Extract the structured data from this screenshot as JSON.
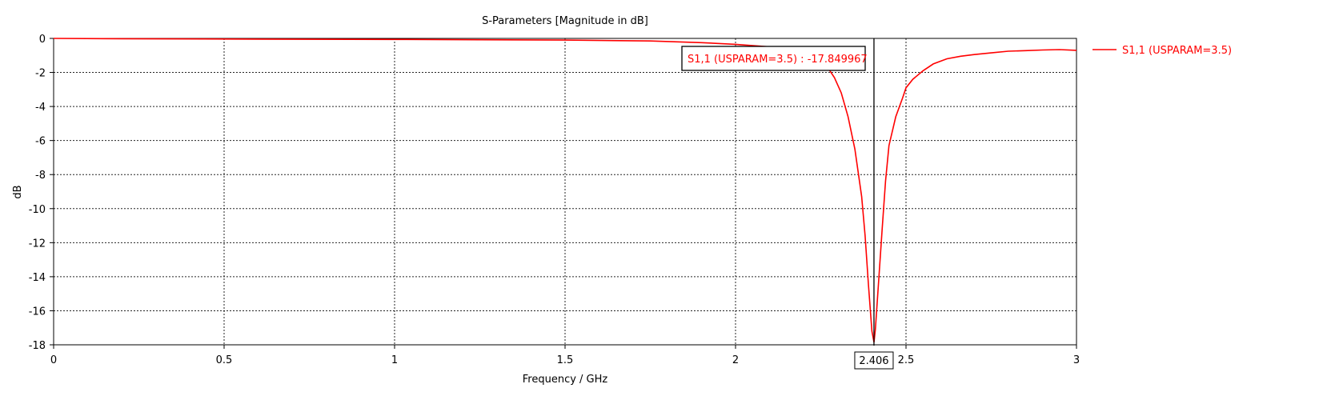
{
  "chart_data": {
    "type": "line",
    "title": "S-Parameters [Magnitude in dB]",
    "xlabel": "Frequency / GHz",
    "ylabel": "dB",
    "xlim": [
      0,
      3
    ],
    "ylim": [
      -18,
      0
    ],
    "x_ticks": [
      "0",
      "0.5",
      "1",
      "1.5",
      "2",
      "2.5",
      "3"
    ],
    "y_ticks": [
      "0",
      "-2",
      "-4",
      "-6",
      "-8",
      "-10",
      "-12",
      "-14",
      "-16",
      "-18"
    ],
    "grid": true,
    "legend_position": "right",
    "series": [
      {
        "name": "S1,1 (USPARAM=3.5)",
        "color": "#ff0000",
        "x": [
          0,
          0.2,
          0.6,
          1.0,
          1.25,
          1.5,
          1.75,
          1.9,
          2.0,
          2.1,
          2.2,
          2.25,
          2.27,
          2.29,
          2.31,
          2.33,
          2.35,
          2.37,
          2.38,
          2.39,
          2.4,
          2.406,
          2.41,
          2.42,
          2.43,
          2.44,
          2.45,
          2.47,
          2.49,
          2.5,
          2.52,
          2.55,
          2.58,
          2.62,
          2.66,
          2.7,
          2.75,
          2.8,
          2.85,
          2.9,
          2.95,
          3.0
        ],
        "y": [
          0,
          -0.02,
          -0.04,
          -0.06,
          -0.08,
          -0.1,
          -0.15,
          -0.25,
          -0.35,
          -0.5,
          -0.9,
          -1.3,
          -1.7,
          -2.3,
          -3.2,
          -4.6,
          -6.5,
          -9.3,
          -11.6,
          -14.5,
          -17.2,
          -17.85,
          -17.1,
          -14.2,
          -11.2,
          -8.4,
          -6.3,
          -4.6,
          -3.5,
          -2.9,
          -2.4,
          -1.9,
          -1.5,
          -1.2,
          -1.05,
          -0.95,
          -0.85,
          -0.75,
          -0.72,
          -0.68,
          -0.66,
          -0.7
        ]
      }
    ],
    "marker": {
      "x": "2.406",
      "label": "S1,1 (USPARAM=3.5) : -17.849967"
    }
  }
}
